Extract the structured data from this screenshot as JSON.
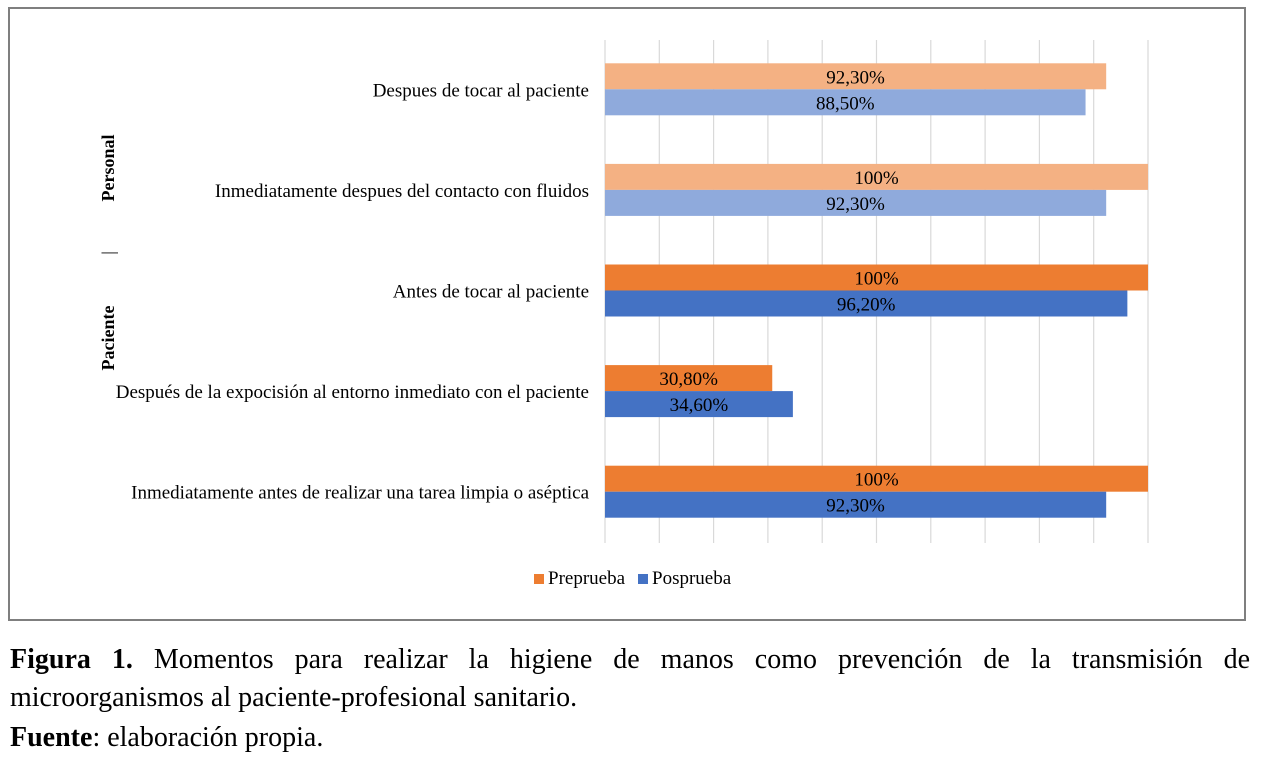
{
  "chart_data": {
    "type": "bar",
    "orientation": "horizontal",
    "categories": [
      "Despues de tocar al paciente",
      "Inmediatamente despues del contacto con fluidos",
      "Antes de tocar al paciente",
      "Después de la expocisión al entorno inmediato con el paciente",
      "Inmediatamente antes de realizar una tarea limpia o aséptica"
    ],
    "group_label_top": "Personal",
    "group_label_separator": "|",
    "group_label_bottom": "Paciente",
    "series": [
      {
        "name": "Preprueba",
        "values": [
          92.3,
          100,
          100,
          30.8,
          100
        ],
        "labels": [
          "92,30%",
          "100%",
          "100%",
          "30,80%",
          "100%"
        ],
        "colors": [
          "#f4b183",
          "#f4b183",
          "#ed7d31",
          "#ed7d31",
          "#ed7d31"
        ]
      },
      {
        "name": "Posprueba",
        "values": [
          88.5,
          92.3,
          96.2,
          34.6,
          92.3
        ],
        "labels": [
          "88,50%",
          "92,30%",
          "96,20%",
          "34,60%",
          "92,30%"
        ],
        "colors": [
          "#8faadc",
          "#8faadc",
          "#4472c4",
          "#4472c4",
          "#4472c4"
        ]
      }
    ],
    "xlim": [
      0,
      100
    ],
    "grid": true,
    "legend": "bottom",
    "legend_colors": {
      "Preprueba": "#ed7d31",
      "Posprueba": "#4472c4"
    }
  },
  "caption": {
    "figure_label": "Figura 1.",
    "figure_text_line1": "Momentos para realizar la higiene de manos como prevención de la transmisión de",
    "figure_text_line2": "microorganismos al paciente-profesional sanitario.",
    "source_label": "Fuente",
    "source_text": ": elaboración propia."
  }
}
